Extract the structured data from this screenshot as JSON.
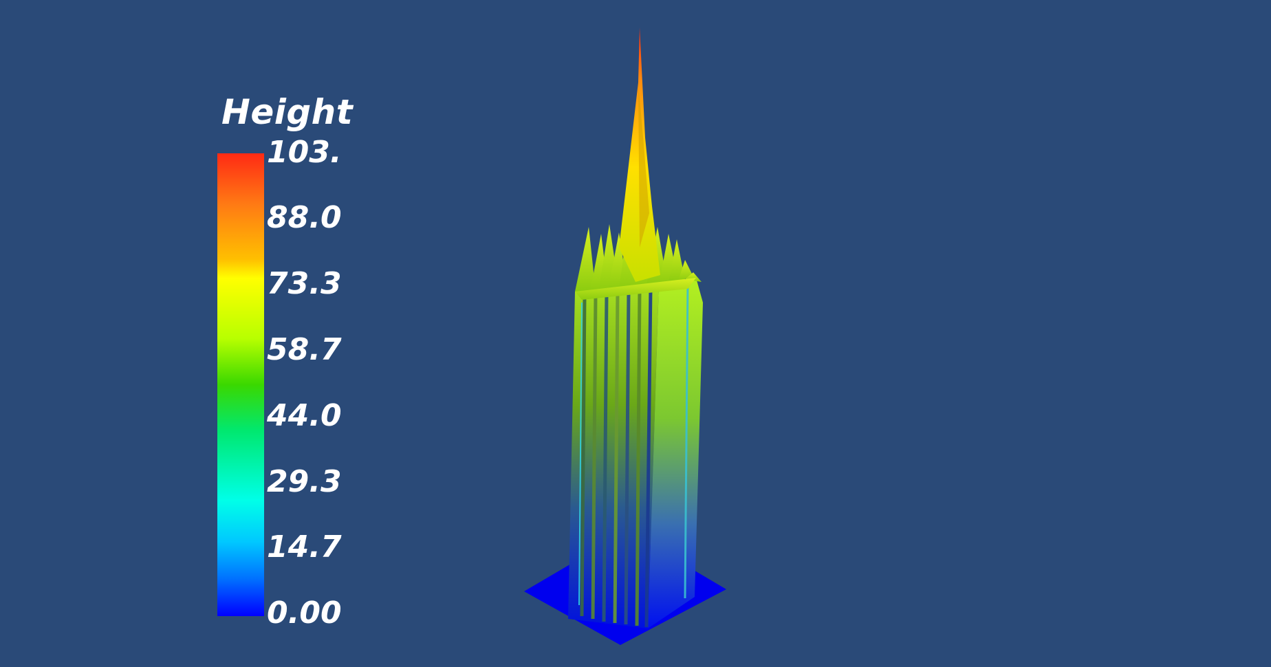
{
  "legend": {
    "title": "Height",
    "ticks": [
      "103.",
      "88.0",
      "73.3",
      "58.7",
      "44.0",
      "29.3",
      "14.7",
      "0.00"
    ]
  },
  "colors": {
    "background": "#2a4a78",
    "scale_low": "#0000ff",
    "scale_mid": "#3ad800",
    "scale_high": "#ff2a14"
  }
}
